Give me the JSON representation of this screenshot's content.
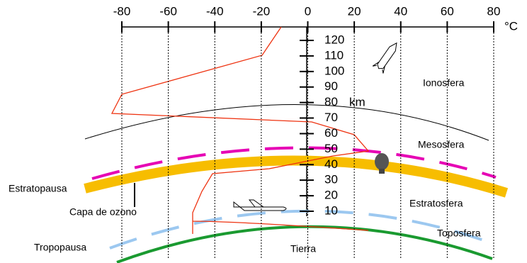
{
  "temperature_axis": {
    "ticks": [
      "-80",
      "-60",
      "-40",
      "-20",
      "0",
      "20",
      "40",
      "60",
      "80"
    ],
    "unit": "°C"
  },
  "altitude_axis": {
    "ticks": [
      "120",
      "110",
      "100",
      "90",
      "80",
      "70",
      "60",
      "50",
      "40",
      "30",
      "20",
      "10"
    ],
    "unit": "km"
  },
  "layers": {
    "ionosphere": "Ionosfera",
    "mesosphere": "Mesosfera",
    "stratosphere": "Estratosfera",
    "troposphere": "Toposfera",
    "earth": "Tierra"
  },
  "boundaries": {
    "stratopause": "Estratopausa",
    "ozone_layer": "Capa de ozono",
    "tropopause": "Tropopausa"
  }
}
